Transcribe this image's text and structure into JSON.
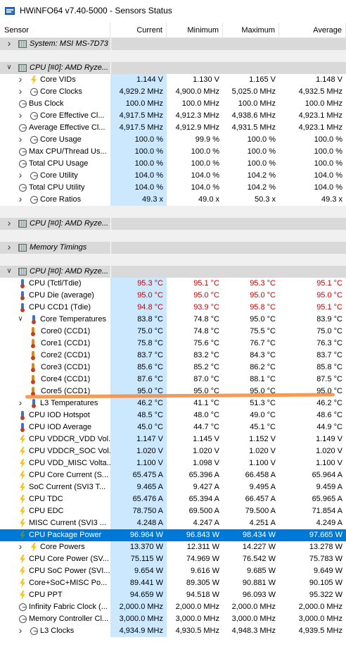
{
  "window": {
    "title": "HWiNFO64 v7.40-5000 - Sensors Status"
  },
  "columns": {
    "sensor": "Sensor",
    "current": "Current",
    "minimum": "Minimum",
    "maximum": "Maximum",
    "average": "Average"
  },
  "rows": [
    {
      "type": "group",
      "label": "System: MSI MS-7D73",
      "chev": "right",
      "icon": "cpu"
    },
    {
      "type": "gap"
    },
    {
      "type": "group",
      "label": "CPU [#0]: AMD Ryze...",
      "chev": "down",
      "icon": "cpu"
    },
    {
      "type": "data",
      "level": 1,
      "chev": "right",
      "icon": "bolt",
      "label": "Core VIDs",
      "cur": "1.144 V",
      "min": "1.130 V",
      "max": "1.165 V",
      "avg": "1.148 V"
    },
    {
      "type": "data",
      "level": 1,
      "chev": "right",
      "icon": "clock",
      "label": "Core Clocks",
      "cur": "4,929.2 MHz",
      "min": "4,900.0 MHz",
      "max": "5,025.0 MHz",
      "avg": "4,932.5 MHz"
    },
    {
      "type": "data",
      "level": 0,
      "icon": "clock",
      "label": "Bus Clock",
      "cur": "100.0 MHz",
      "min": "100.0 MHz",
      "max": "100.0 MHz",
      "avg": "100.0 MHz"
    },
    {
      "type": "data",
      "level": 1,
      "chev": "right",
      "icon": "clock",
      "label": "Core Effective Cl...",
      "cur": "4,917.5 MHz",
      "min": "4,912.3 MHz",
      "max": "4,938.6 MHz",
      "avg": "4,923.1 MHz"
    },
    {
      "type": "data",
      "level": 0,
      "icon": "clock",
      "label": "Average Effective Cl...",
      "cur": "4,917.5 MHz",
      "min": "4,912.9 MHz",
      "max": "4,931.5 MHz",
      "avg": "4,923.1 MHz"
    },
    {
      "type": "data",
      "level": 1,
      "chev": "right",
      "icon": "clock",
      "label": "Core Usage",
      "cur": "100.0 %",
      "min": "99.9 %",
      "max": "100.0 %",
      "avg": "100.0 %"
    },
    {
      "type": "data",
      "level": 0,
      "icon": "clock",
      "label": "Max CPU/Thread Us...",
      "cur": "100.0 %",
      "min": "100.0 %",
      "max": "100.0 %",
      "avg": "100.0 %"
    },
    {
      "type": "data",
      "level": 0,
      "icon": "clock",
      "label": "Total CPU Usage",
      "cur": "100.0 %",
      "min": "100.0 %",
      "max": "100.0 %",
      "avg": "100.0 %"
    },
    {
      "type": "data",
      "level": 1,
      "chev": "right",
      "icon": "clock",
      "label": "Core Utility",
      "cur": "104.0 %",
      "min": "104.0 %",
      "max": "104.2 %",
      "avg": "104.0 %"
    },
    {
      "type": "data",
      "level": 0,
      "icon": "clock",
      "label": "Total CPU Utility",
      "cur": "104.0 %",
      "min": "104.0 %",
      "max": "104.2 %",
      "avg": "104.0 %"
    },
    {
      "type": "data",
      "level": 1,
      "chev": "right",
      "icon": "clock",
      "label": "Core Ratios",
      "cur": "49.3 x",
      "min": "49.0 x",
      "max": "50.3 x",
      "avg": "49.3 x"
    },
    {
      "type": "gap"
    },
    {
      "type": "group",
      "label": "CPU [#0]: AMD Ryze...",
      "chev": "right",
      "icon": "cpu"
    },
    {
      "type": "gap"
    },
    {
      "type": "group",
      "label": "Memory Timings",
      "chev": "right",
      "icon": "cpu"
    },
    {
      "type": "gap"
    },
    {
      "type": "group",
      "label": "CPU [#0]: AMD Ryze...",
      "chev": "down",
      "icon": "cpu"
    },
    {
      "type": "data",
      "level": 0,
      "icon": "therm",
      "red": true,
      "label": "CPU (Tctl/Tdie)",
      "cur": "95.3 °C",
      "min": "95.1 °C",
      "max": "95.3 °C",
      "avg": "95.1 °C"
    },
    {
      "type": "data",
      "level": 0,
      "icon": "therm",
      "red": true,
      "label": "CPU Die (average)",
      "cur": "95.0 °C",
      "min": "95.0 °C",
      "max": "95.0 °C",
      "avg": "95.0 °C"
    },
    {
      "type": "data",
      "level": 0,
      "icon": "therm",
      "red": true,
      "label": "CPU CCD1 (Tdie)",
      "cur": "94.8 °C",
      "min": "93.9 °C",
      "max": "95.8 °C",
      "avg": "95.1 °C"
    },
    {
      "type": "data",
      "level": 1,
      "chev": "down",
      "icon": "therm",
      "label": "Core Temperatures",
      "cur": "83.8 °C",
      "min": "74.8 °C",
      "max": "95.0 °C",
      "avg": "83.9 °C"
    },
    {
      "type": "data",
      "level": 2,
      "icon": "therm",
      "label": "Core0 (CCD1)",
      "cur": "75.0 °C",
      "min": "74.8 °C",
      "max": "75.5 °C",
      "avg": "75.0 °C"
    },
    {
      "type": "data",
      "level": 2,
      "icon": "therm",
      "label": "Core1 (CCD1)",
      "cur": "75.8 °C",
      "min": "75.6 °C",
      "max": "76.7 °C",
      "avg": "76.3 °C"
    },
    {
      "type": "data",
      "level": 2,
      "icon": "therm",
      "label": "Core2 (CCD1)",
      "cur": "83.7 °C",
      "min": "83.2 °C",
      "max": "84.3 °C",
      "avg": "83.7 °C"
    },
    {
      "type": "data",
      "level": 2,
      "icon": "therm",
      "label": "Core3 (CCD1)",
      "cur": "85.6 °C",
      "min": "85.2 °C",
      "max": "86.2 °C",
      "avg": "85.8 °C"
    },
    {
      "type": "data",
      "level": 2,
      "icon": "therm",
      "label": "Core4 (CCD1)",
      "cur": "87.6 °C",
      "min": "87.0 °C",
      "max": "88.1 °C",
      "avg": "87.5 °C"
    },
    {
      "type": "data",
      "level": 2,
      "icon": "therm",
      "label": "Core5 (CCD1)",
      "cur": "95.0 °C",
      "min": "95.0 °C",
      "max": "95.0 °C",
      "avg": "95.0 °C"
    },
    {
      "type": "data",
      "level": 1,
      "chev": "right",
      "icon": "therm",
      "label": "L3 Temperatures",
      "cur": "46.2 °C",
      "min": "41.1 °C",
      "max": "51.3 °C",
      "avg": "46.2 °C"
    },
    {
      "type": "data",
      "level": 0,
      "icon": "therm",
      "label": "CPU IOD Hotspot",
      "cur": "48.5 °C",
      "min": "48.0 °C",
      "max": "49.0 °C",
      "avg": "48.6 °C"
    },
    {
      "type": "data",
      "level": 0,
      "icon": "therm",
      "label": "CPU IOD Average",
      "cur": "45.0 °C",
      "min": "44.7 °C",
      "max": "45.1 °C",
      "avg": "44.9 °C"
    },
    {
      "type": "data",
      "level": 0,
      "icon": "bolt",
      "label": "CPU VDDCR_VDD Vol...",
      "cur": "1.147 V",
      "min": "1.145 V",
      "max": "1.152 V",
      "avg": "1.149 V"
    },
    {
      "type": "data",
      "level": 0,
      "icon": "bolt",
      "label": "CPU VDDCR_SOC Vol...",
      "cur": "1.020 V",
      "min": "1.020 V",
      "max": "1.020 V",
      "avg": "1.020 V"
    },
    {
      "type": "data",
      "level": 0,
      "icon": "bolt",
      "label": "CPU VDD_MISC Volta...",
      "cur": "1.100 V",
      "min": "1.098 V",
      "max": "1.100 V",
      "avg": "1.100 V"
    },
    {
      "type": "data",
      "level": 0,
      "icon": "bolt",
      "label": "CPU Core Current (S...",
      "cur": "65.475 A",
      "min": "65.396 A",
      "max": "66.458 A",
      "avg": "65.964 A"
    },
    {
      "type": "data",
      "level": 0,
      "icon": "bolt",
      "label": "SoC Current (SVI3 T...",
      "cur": "9.465 A",
      "min": "9.427 A",
      "max": "9.495 A",
      "avg": "9.459 A"
    },
    {
      "type": "data",
      "level": 0,
      "icon": "bolt",
      "label": "CPU TDC",
      "cur": "65.476 A",
      "min": "65.394 A",
      "max": "66.457 A",
      "avg": "65.965 A"
    },
    {
      "type": "data",
      "level": 0,
      "icon": "bolt",
      "label": "CPU EDC",
      "cur": "78.750 A",
      "min": "69.500 A",
      "max": "79.500 A",
      "avg": "71.854 A"
    },
    {
      "type": "data",
      "level": 0,
      "icon": "bolt",
      "label": "MISC Current (SVI3 ...",
      "cur": "4.248 A",
      "min": "4.247 A",
      "max": "4.251 A",
      "avg": "4.249 A"
    },
    {
      "type": "data",
      "level": 0,
      "icon": "bolt-green",
      "selected": true,
      "label": "CPU Package Power",
      "cur": "96.964 W",
      "min": "96.843 W",
      "max": "98.434 W",
      "avg": "97.665 W"
    },
    {
      "type": "data",
      "level": 1,
      "chev": "right",
      "icon": "bolt",
      "label": "Core Powers",
      "cur": "13.370 W",
      "min": "12.311 W",
      "max": "14.227 W",
      "avg": "13.278 W"
    },
    {
      "type": "data",
      "level": 0,
      "icon": "bolt",
      "label": "CPU Core Power (SV...",
      "cur": "75.115 W",
      "min": "74.969 W",
      "max": "76.542 W",
      "avg": "75.783 W"
    },
    {
      "type": "data",
      "level": 0,
      "icon": "bolt",
      "label": "CPU SoC Power (SVI...",
      "cur": "9.654 W",
      "min": "9.616 W",
      "max": "9.685 W",
      "avg": "9.649 W"
    },
    {
      "type": "data",
      "level": 0,
      "icon": "bolt",
      "label": "Core+SoC+MISC Po...",
      "cur": "89.441 W",
      "min": "89.305 W",
      "max": "90.881 W",
      "avg": "90.105 W"
    },
    {
      "type": "data",
      "level": 0,
      "icon": "bolt",
      "label": "CPU PPT",
      "cur": "94.659 W",
      "min": "94.518 W",
      "max": "96.093 W",
      "avg": "95.322 W"
    },
    {
      "type": "data",
      "level": 0,
      "icon": "clock",
      "label": "Infinity Fabric Clock (...",
      "cur": "2,000.0 MHz",
      "min": "2,000.0 MHz",
      "max": "2,000.0 MHz",
      "avg": "2,000.0 MHz"
    },
    {
      "type": "data",
      "level": 0,
      "icon": "clock",
      "label": "Memory Controller Cl...",
      "cur": "3,000.0 MHz",
      "min": "3,000.0 MHz",
      "max": "3,000.0 MHz",
      "avg": "3,000.0 MHz"
    },
    {
      "type": "data",
      "level": 1,
      "chev": "right",
      "icon": "clock",
      "label": "L3 Clocks",
      "cur": "4,934.9 MHz",
      "min": "4,930.5 MHz",
      "max": "4,948.3 MHz",
      "avg": "4,939.5 MHz"
    }
  ]
}
